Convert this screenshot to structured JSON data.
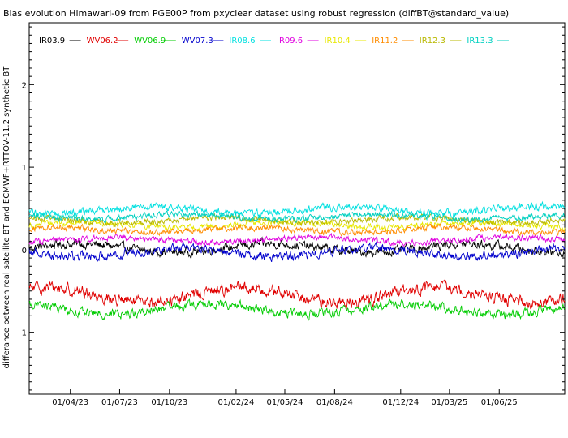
{
  "chart_data": {
    "type": "line",
    "title": "Bias evolution Himawari-09 from PGE00P from pxyclear dataset using robust regression (diffBT@standard_value)",
    "ylabel": "differance between real satellite BT and ECMWF+RTTOV-11.2 synthetic BT",
    "xlabel": "",
    "ylim": [
      -1.75,
      2.75
    ],
    "y_ticks": [
      -1,
      0,
      1,
      2
    ],
    "x_ticks": [
      "01/04/23",
      "01/07/23",
      "01/10/23",
      "01/02/24",
      "01/05/24",
      "01/08/24",
      "01/12/24",
      "01/03/25",
      "01/06/25"
    ],
    "x_range": [
      "2023-01-15",
      "2025-09-30"
    ],
    "grid": false,
    "legend_position": "top-left",
    "series": [
      {
        "name": "IR03.9",
        "color": "#000000",
        "level": 0.02,
        "noise": 0.06,
        "amp": 0.05
      },
      {
        "name": "WV06.2",
        "color": "#e00000",
        "level": -0.55,
        "noise": 0.08,
        "amp": 0.09
      },
      {
        "name": "WV06.9",
        "color": "#00cc00",
        "level": -0.72,
        "noise": 0.06,
        "amp": 0.06
      },
      {
        "name": "WV07.3",
        "color": "#0000cc",
        "level": -0.03,
        "noise": 0.06,
        "amp": 0.05
      },
      {
        "name": "IR08.6",
        "color": "#00e0e0",
        "level": 0.48,
        "noise": 0.05,
        "amp": 0.04
      },
      {
        "name": "IR09.6",
        "color": "#e000e0",
        "level": 0.12,
        "noise": 0.04,
        "amp": 0.03
      },
      {
        "name": "IR10.4",
        "color": "#e8e800",
        "level": 0.3,
        "noise": 0.04,
        "amp": 0.03
      },
      {
        "name": "IR11.2",
        "color": "#ff8c00",
        "level": 0.24,
        "noise": 0.04,
        "amp": 0.03
      },
      {
        "name": "IR12.3",
        "color": "#b8b800",
        "level": 0.36,
        "noise": 0.04,
        "amp": 0.03
      },
      {
        "name": "IR13.3",
        "color": "#00d0c0",
        "level": 0.4,
        "noise": 0.04,
        "amp": 0.03
      }
    ]
  }
}
